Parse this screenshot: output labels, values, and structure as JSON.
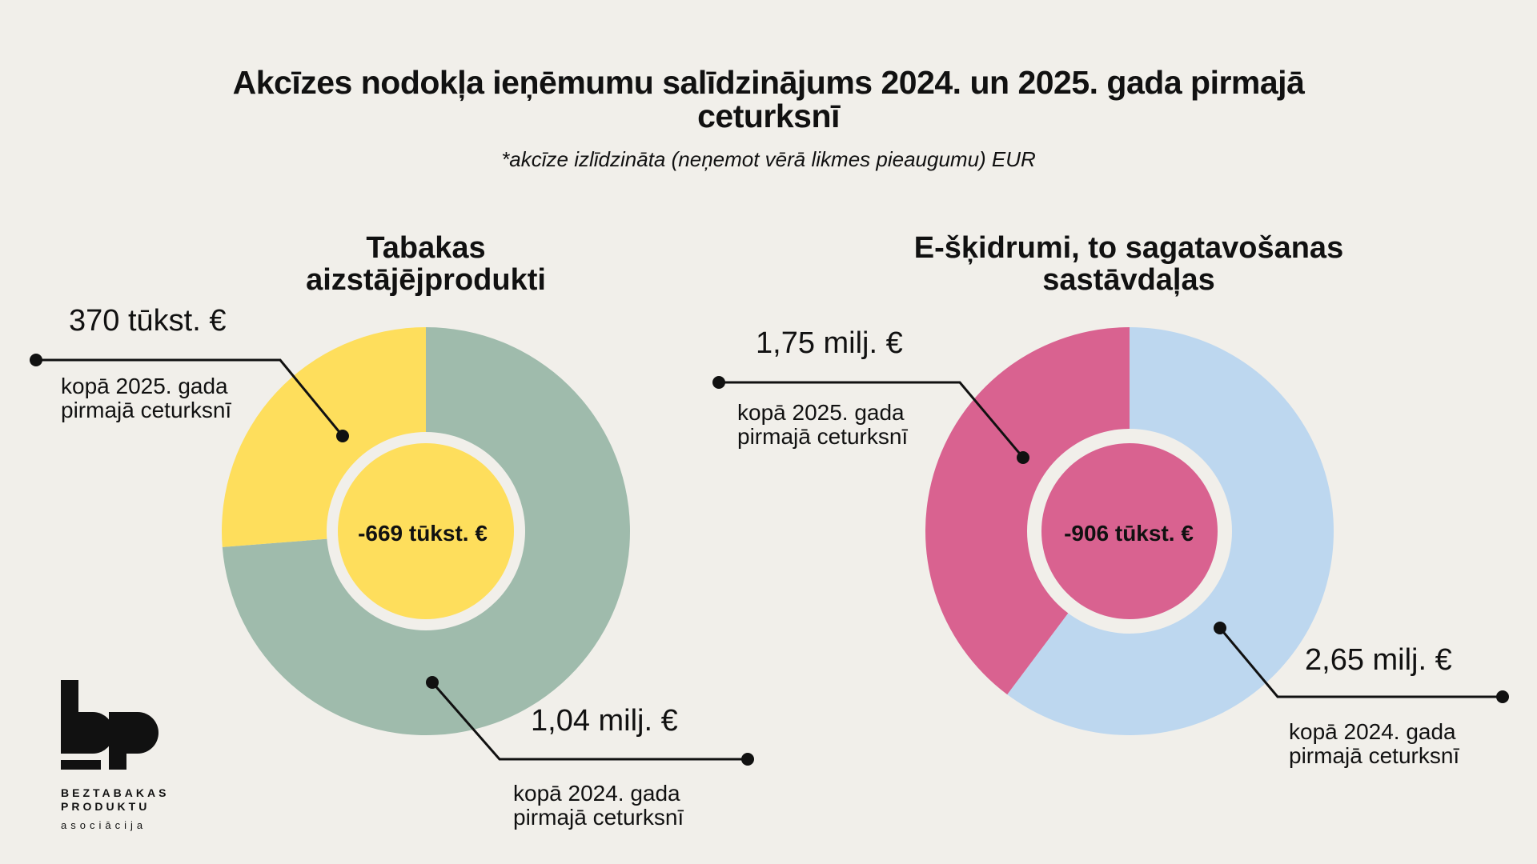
{
  "header": {
    "title_line1": "Akcīzes nodokļa ieņēmumu salīdzinājums 2024. un 2025. gada pirmajā",
    "title_line2": "ceturksnī",
    "subtitle": "*akcīze izlīdzināta (neņemot vērā likmes pieaugumu) EUR"
  },
  "chart_data": [
    {
      "type": "pie",
      "title_line1": "Tabakas",
      "title_line2": "aizstājējprodukti",
      "center_label": "-669 tūkst. €",
      "slices": [
        {
          "label": "kopā 2025. gada pirmajā ceturksnī",
          "value": 0.37,
          "value_label": "370 tūkst. €",
          "color": "#fede5c"
        },
        {
          "label": "kopā 2024. gada pirmajā ceturksnī",
          "value": 1.04,
          "value_label": "1,04 milj. €",
          "color": "#9fbbac"
        }
      ],
      "desc_2025_line1": "kopā 2025. gada",
      "desc_2025_line2": "pirmajā ceturksnī",
      "desc_2024_line1": "kopā 2024. gada",
      "desc_2024_line2": "pirmajā ceturksnī"
    },
    {
      "type": "pie",
      "title_line1": "E-šķidrumi, to sagatavošanas",
      "title_line2": "sastāvdaļas",
      "center_label": "-906 tūkst. €",
      "slices": [
        {
          "label": "kopā 2025. gada pirmajā ceturksnī",
          "value": 1.75,
          "value_label": "1,75 milj. €",
          "color": "#d96290"
        },
        {
          "label": "kopā 2024. gada pirmajā ceturksnī",
          "value": 2.65,
          "value_label": "2,65 milj. €",
          "color": "#bdd7ef"
        }
      ],
      "desc_2025_line1": "kopā 2025. gada",
      "desc_2025_line2": "pirmajā ceturksnī",
      "desc_2024_line1": "kopā 2024. gada",
      "desc_2024_line2": "pirmajā ceturksnī"
    }
  ],
  "logo": {
    "line1": "BEZTABAKAS",
    "line2": "PRODUKTU",
    "line3": "asociācija"
  }
}
